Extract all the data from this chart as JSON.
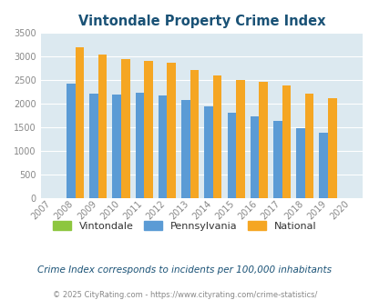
{
  "title": "Vintondale Property Crime Index",
  "years": [
    2007,
    2008,
    2009,
    2010,
    2011,
    2012,
    2013,
    2014,
    2015,
    2016,
    2017,
    2018,
    2019,
    2020
  ],
  "vintondale": [
    0,
    0,
    0,
    0,
    0,
    0,
    0,
    0,
    0,
    0,
    0,
    0,
    0,
    0
  ],
  "pennsylvania": [
    0,
    2420,
    2210,
    2190,
    2230,
    2170,
    2070,
    1940,
    1800,
    1730,
    1640,
    1490,
    1390,
    0
  ],
  "national": [
    0,
    3200,
    3040,
    2950,
    2900,
    2860,
    2720,
    2590,
    2500,
    2470,
    2380,
    2210,
    2120,
    0
  ],
  "pa_color": "#5b9bd5",
  "nat_color": "#f5a623",
  "vint_color": "#8dc63f",
  "bg_color": "#dce9f0",
  "ylim": [
    0,
    3500
  ],
  "yticks": [
    0,
    500,
    1000,
    1500,
    2000,
    2500,
    3000,
    3500
  ],
  "subtitle": "Crime Index corresponds to incidents per 100,000 inhabitants",
  "footer": "© 2025 CityRating.com - https://www.cityrating.com/crime-statistics/",
  "legend_labels": [
    "Vintondale",
    "Pennsylvania",
    "National"
  ],
  "title_color": "#1a5276",
  "subtitle_color": "#1a5276",
  "footer_color": "#888888",
  "tick_color": "#888888",
  "bar_width": 0.38
}
